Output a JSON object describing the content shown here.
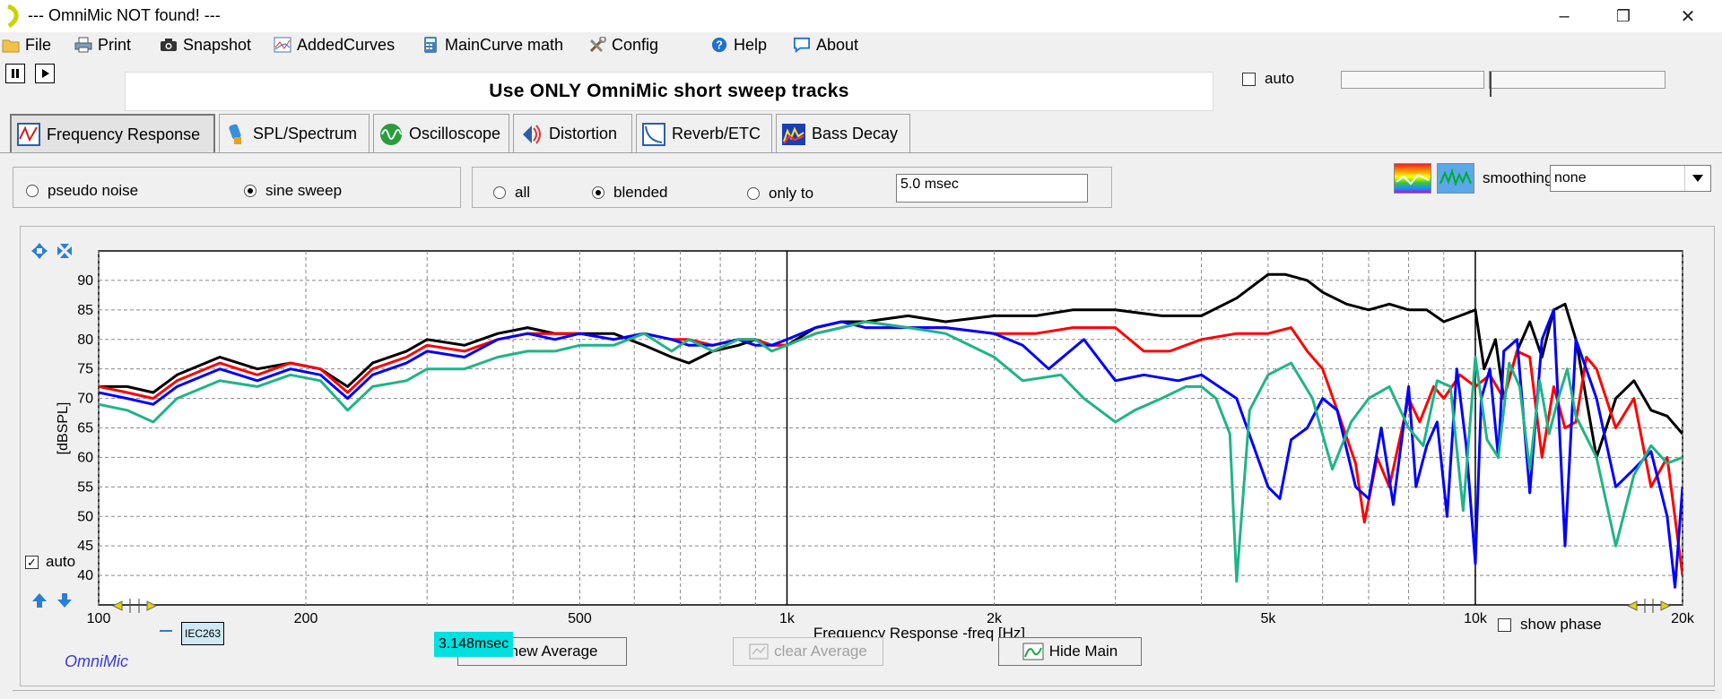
{
  "window": {
    "title": "--- OmniMic NOT found! ---",
    "minimize": "–",
    "maximize": "❐",
    "close": "✕"
  },
  "menu": [
    {
      "label": "File",
      "icon": "folder-icon"
    },
    {
      "label": "Print",
      "icon": "printer-icon"
    },
    {
      "label": "Snapshot",
      "icon": "camera-icon"
    },
    {
      "label": "AddedCurves",
      "icon": "curves-icon"
    },
    {
      "label": "MainCurve math",
      "icon": "calculator-icon"
    },
    {
      "label": "Config",
      "icon": "tools-icon"
    },
    {
      "label": "Help",
      "icon": "help-icon"
    },
    {
      "label": "About",
      "icon": "speech-bubble-icon"
    }
  ],
  "banner": "Use ONLY OmniMic short sweep tracks",
  "top_auto_label": "auto",
  "tabs": [
    {
      "label": "Frequency Response",
      "active": true
    },
    {
      "label": "SPL/Spectrum",
      "active": false
    },
    {
      "label": "Oscilloscope",
      "active": false
    },
    {
      "label": "Distortion",
      "active": false
    },
    {
      "label": "Reverb/ETC",
      "active": false
    },
    {
      "label": "Bass Decay",
      "active": false
    }
  ],
  "signal_group": {
    "pseudo_noise": "pseudo noise",
    "sine_sweep": "sine sweep",
    "selected": "sine sweep"
  },
  "gate_group": {
    "all": "all",
    "blended": "blended",
    "only_to": "only to",
    "selected": "blended",
    "value": "5.0 msec"
  },
  "smoothing": {
    "label": "smoothing",
    "value": "none"
  },
  "plot": {
    "auto_label": "auto",
    "show_phase_label": "show phase",
    "ylabel": "[dBSPL]",
    "xlabel": "Frequency Response -freq [Hz]",
    "iec_badge": "IEC263",
    "brand": "OmniMic",
    "time_readout": "3.148msec"
  },
  "buttons": {
    "new_average": "new Average",
    "clear_average": "clear Average",
    "hide_main": "Hide Main"
  },
  "chart_data": {
    "type": "line",
    "xscale": "log",
    "xlim": [
      100,
      20000
    ],
    "ylim": [
      35,
      95
    ],
    "yticks": [
      90,
      85,
      80,
      75,
      70,
      65,
      60,
      55,
      50,
      45,
      40
    ],
    "xticks": [
      {
        "value": 100,
        "label": "100"
      },
      {
        "value": 200,
        "label": "200"
      },
      {
        "value": 500,
        "label": "500"
      },
      {
        "value": 1000,
        "label": "1k"
      },
      {
        "value": 2000,
        "label": "2k"
      },
      {
        "value": 5000,
        "label": "5k"
      },
      {
        "value": 10000,
        "label": "10k"
      },
      {
        "value": 20000,
        "label": "20k"
      }
    ],
    "grid": true,
    "series": [
      {
        "color": "#000000",
        "x": [
          100,
          110,
          120,
          130,
          150,
          170,
          190,
          210,
          230,
          250,
          280,
          300,
          340,
          380,
          420,
          460,
          500,
          560,
          620,
          680,
          720,
          780,
          850,
          900,
          950,
          1000,
          1100,
          1200,
          1300,
          1500,
          1700,
          2000,
          2300,
          2600,
          3000,
          3500,
          4000,
          4500,
          5000,
          5300,
          5700,
          6000,
          6500,
          7000,
          7500,
          8000,
          8500,
          9000,
          9500,
          10000,
          10300,
          10700,
          11000,
          11500,
          12000,
          12500,
          13000,
          13500,
          14000,
          15000,
          16000,
          17000,
          18000,
          19000,
          20000
        ],
        "y": [
          72,
          72,
          71,
          74,
          77,
          75,
          76,
          75,
          72,
          76,
          78,
          80,
          79,
          81,
          82,
          81,
          81,
          81,
          79,
          77,
          76,
          78,
          79,
          80,
          79,
          79,
          82,
          83,
          83,
          84,
          83,
          84,
          84,
          85,
          85,
          84,
          84,
          87,
          91,
          91,
          90,
          88,
          86,
          85,
          86,
          85,
          85,
          83,
          84,
          85,
          75,
          80,
          70,
          78,
          83,
          77,
          85,
          86,
          80,
          60,
          70,
          73,
          68,
          67,
          64
        ]
      },
      {
        "color": "#ff0000",
        "x": [
          100,
          110,
          120,
          130,
          150,
          170,
          190,
          210,
          230,
          250,
          280,
          300,
          340,
          380,
          420,
          460,
          500,
          560,
          620,
          680,
          720,
          780,
          850,
          900,
          950,
          1000,
          1100,
          1200,
          1300,
          1500,
          1700,
          2000,
          2300,
          2600,
          3000,
          3300,
          3600,
          4000,
          4500,
          5000,
          5400,
          5700,
          6000,
          6300,
          6700,
          6900,
          7200,
          7500,
          8000,
          8300,
          8700,
          9000,
          9500,
          10000,
          10500,
          11000,
          11500,
          12000,
          12500,
          13000,
          13500,
          14000,
          14500,
          15000,
          16000,
          17000,
          18000,
          19000,
          20000
        ],
        "y": [
          72,
          71,
          70,
          73,
          76,
          74,
          76,
          75,
          71,
          75,
          77,
          79,
          78,
          80,
          81,
          81,
          81,
          80,
          81,
          80,
          80,
          79,
          80,
          80,
          79,
          79,
          81,
          82,
          83,
          82,
          82,
          81,
          81,
          82,
          82,
          78,
          78,
          80,
          81,
          81,
          82,
          78,
          75,
          68,
          59,
          49,
          60,
          55,
          70,
          66,
          72,
          70,
          74,
          72,
          74,
          70,
          78,
          77,
          60,
          72,
          65,
          66,
          77,
          75,
          65,
          70,
          55,
          60,
          40
        ]
      },
      {
        "color": "#0000ff",
        "x": [
          100,
          110,
          120,
          130,
          150,
          170,
          190,
          210,
          230,
          250,
          280,
          300,
          340,
          380,
          420,
          460,
          500,
          560,
          620,
          680,
          720,
          780,
          850,
          900,
          950,
          1000,
          1100,
          1200,
          1300,
          1500,
          1700,
          2000,
          2200,
          2400,
          2700,
          3000,
          3300,
          3700,
          4000,
          4500,
          5000,
          5200,
          5400,
          5700,
          6000,
          6300,
          6700,
          7000,
          7300,
          7600,
          8000,
          8200,
          8500,
          8800,
          9100,
          9400,
          9700,
          10000,
          10200,
          10500,
          10800,
          11000,
          11500,
          12000,
          12500,
          13000,
          13500,
          14000,
          15000,
          16000,
          17000,
          18000,
          19000,
          19500,
          20000
        ],
        "y": [
          71,
          70,
          69,
          72,
          75,
          73,
          75,
          74,
          70,
          74,
          76,
          78,
          77,
          80,
          81,
          80,
          81,
          80,
          81,
          80,
          79,
          79,
          80,
          79,
          79,
          80,
          82,
          83,
          82,
          82,
          82,
          81,
          79,
          75,
          80,
          73,
          74,
          73,
          74,
          70,
          55,
          53,
          63,
          65,
          70,
          68,
          55,
          53,
          65,
          52,
          72,
          55,
          62,
          66,
          50,
          75,
          62,
          42,
          70,
          75,
          60,
          78,
          80,
          54,
          80,
          85,
          45,
          80,
          70,
          55,
          58,
          61,
          50,
          38,
          55
        ]
      },
      {
        "color": "#1fb487",
        "x": [
          100,
          110,
          120,
          130,
          150,
          170,
          190,
          210,
          230,
          250,
          280,
          300,
          340,
          380,
          420,
          460,
          500,
          560,
          620,
          680,
          720,
          780,
          850,
          900,
          950,
          1000,
          1100,
          1200,
          1300,
          1500,
          1700,
          2000,
          2200,
          2500,
          2700,
          3000,
          3200,
          3500,
          3800,
          4000,
          4200,
          4400,
          4500,
          4700,
          5000,
          5400,
          5800,
          6200,
          6600,
          7000,
          7500,
          8000,
          8400,
          8800,
          9200,
          9600,
          10000,
          10400,
          10800,
          11200,
          11600,
          12000,
          12400,
          12800,
          13200,
          13600,
          14000,
          15000,
          16000,
          17000,
          18000,
          19000,
          20000
        ],
        "y": [
          69,
          68,
          66,
          70,
          73,
          72,
          74,
          73,
          68,
          72,
          73,
          75,
          75,
          77,
          78,
          78,
          79,
          79,
          81,
          78,
          80,
          78,
          80,
          80,
          78,
          79,
          81,
          82,
          83,
          82,
          81,
          77,
          73,
          74,
          70,
          66,
          68,
          70,
          72,
          72,
          70,
          64,
          39,
          68,
          74,
          76,
          70,
          58,
          66,
          70,
          72,
          65,
          62,
          73,
          72,
          51,
          77,
          63,
          60,
          76,
          72,
          58,
          73,
          64,
          70,
          75,
          67,
          60,
          45,
          57,
          62,
          59,
          60
        ]
      }
    ]
  }
}
